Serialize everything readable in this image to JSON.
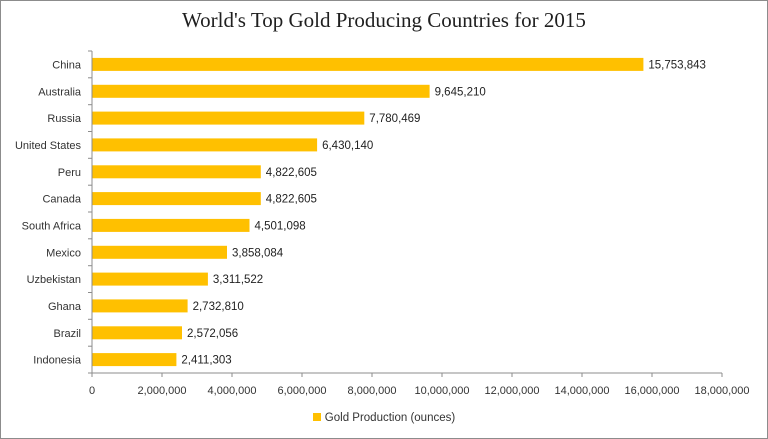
{
  "colors": {
    "bar": "#FFC000",
    "axis": "#8c8c8c",
    "text": "#333333"
  },
  "chart_data": {
    "type": "bar",
    "orientation": "horizontal",
    "title": "World's Top Gold Producing Countries for 2015",
    "xlabel": "",
    "ylabel": "",
    "categories": [
      "China",
      "Australia",
      "Russia",
      "United States",
      "Peru",
      "Canada",
      "South Africa",
      "Mexico",
      "Uzbekistan",
      "Ghana",
      "Brazil",
      "Indonesia"
    ],
    "series": [
      {
        "name": "Gold Production (ounces)",
        "values": [
          15753843,
          9645210,
          7780469,
          6430140,
          4822605,
          4822605,
          4501098,
          3858084,
          3311522,
          2732810,
          2572056,
          2411303
        ],
        "labels": [
          "15,753,843",
          "9,645,210",
          "7,780,469",
          "6,430,140",
          "4,822,605",
          "4,822,605",
          "4,501,098",
          "3,858,084",
          "3,311,522",
          "2,732,810",
          "2,572,056",
          "2,411,303"
        ]
      }
    ],
    "xlim": [
      0,
      18000000
    ],
    "xticks": [
      0,
      2000000,
      4000000,
      6000000,
      8000000,
      10000000,
      12000000,
      14000000,
      16000000,
      18000000
    ],
    "xtick_labels": [
      "0",
      "2,000,000",
      "4,000,000",
      "6,000,000",
      "8,000,000",
      "10,000,000",
      "12,000,000",
      "14,000,000",
      "16,000,000",
      "18,000,000"
    ],
    "grid": false,
    "legend": "bottom"
  }
}
